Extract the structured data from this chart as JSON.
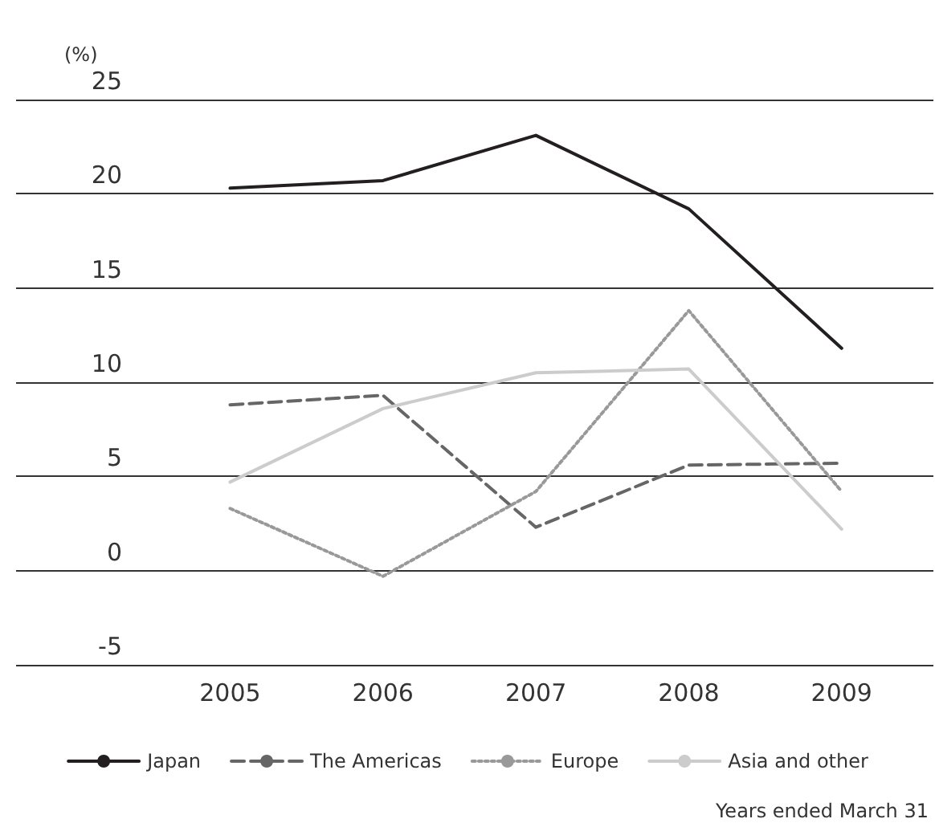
{
  "chart_data": {
    "type": "line",
    "ylabel": "(%)",
    "x": [
      2005,
      2006,
      2007,
      2008,
      2009
    ],
    "xlim": [
      2003.6,
      2009.6
    ],
    "xticks": [
      2005,
      2006,
      2007,
      2008,
      2009
    ],
    "ylim": [
      -5,
      25
    ],
    "yticks": [
      -5,
      0,
      5,
      10,
      15,
      20,
      25
    ],
    "grid": "y",
    "legend": "bottom",
    "marker": "none",
    "series": [
      {
        "name": "Japan",
        "color": "#231f20",
        "line_style": "solid",
        "values": [
          20.3,
          20.7,
          23.1,
          19.2,
          11.8
        ]
      },
      {
        "name": "The Americas",
        "color": "#666666",
        "line_style": "dashed",
        "values": [
          8.8,
          9.3,
          2.3,
          5.6,
          5.7
        ]
      },
      {
        "name": "Europe",
        "color": "#999999",
        "line_style": "dotted",
        "values": [
          3.3,
          -0.3,
          4.2,
          13.8,
          4.2
        ]
      },
      {
        "name": "Asia and other",
        "color": "#cccccc",
        "line_style": "solid",
        "values": [
          4.7,
          8.6,
          10.5,
          10.7,
          2.2
        ]
      }
    ],
    "annotations": [
      "Years ended March 31"
    ]
  }
}
